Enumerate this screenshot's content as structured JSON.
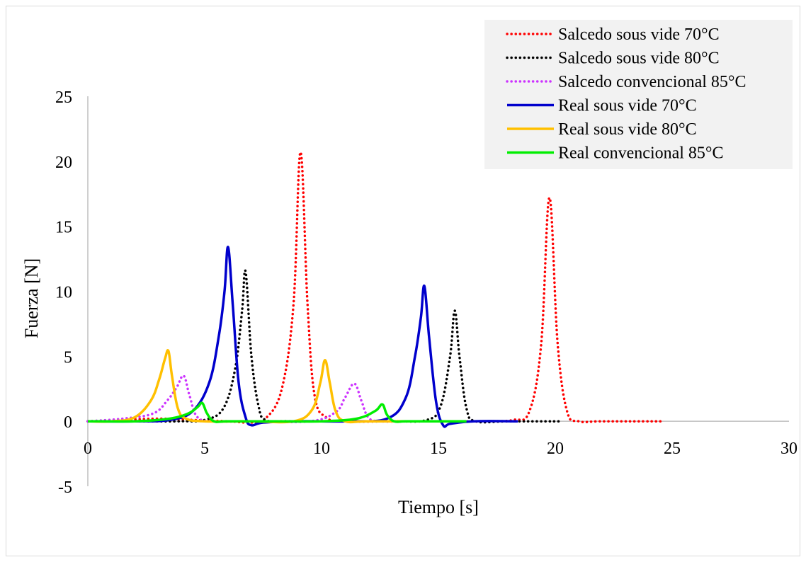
{
  "chart_data": {
    "type": "line",
    "title": "",
    "xlabel": "Tiempo [s]",
    "ylabel": "Fuerza [N]",
    "xlim": [
      0,
      30
    ],
    "ylim": [
      -5,
      25
    ],
    "x_ticks": [
      0,
      5,
      10,
      15,
      20,
      25,
      30
    ],
    "y_ticks": [
      -5,
      0,
      5,
      10,
      15,
      20,
      25
    ],
    "x_tick_labels": [
      "0",
      "5",
      "10",
      "15",
      "20",
      "25",
      "30"
    ],
    "y_tick_labels": [
      "-5",
      "0",
      "5",
      "10",
      "15",
      "20",
      "25"
    ],
    "grid": false,
    "legend_position": "top-right",
    "series": [
      {
        "name": "Salcedo sous vide 70°C",
        "color": "#ff0000",
        "style": "dotted",
        "x": [
          0,
          1.5,
          3,
          4.5,
          6,
          7,
          7.6,
          8.3,
          8.8,
          9.1,
          9.4,
          9.7,
          10.2,
          11,
          13,
          15,
          17,
          18.2,
          18.9,
          19.4,
          19.75,
          20.1,
          20.5,
          21,
          22,
          24.6
        ],
        "y": [
          0,
          0.1,
          0.2,
          0.1,
          0,
          -0.1,
          0.2,
          2.5,
          9,
          20.7,
          9,
          2,
          0.3,
          0,
          0,
          0,
          0,
          0.1,
          0.8,
          6,
          17.2,
          6,
          0.8,
          0,
          0,
          0
        ]
      },
      {
        "name": "Salcedo sous vide 80°C",
        "color": "#000000",
        "style": "dotted",
        "x": [
          0,
          2,
          4,
          5,
          5.8,
          6.3,
          6.6,
          6.75,
          7,
          7.3,
          7.6,
          8.5,
          10,
          13,
          14.5,
          15.1,
          15.5,
          15.7,
          15.9,
          16.2,
          16.6,
          18,
          20.3
        ],
        "y": [
          0,
          0,
          0,
          0.1,
          1,
          4,
          8.5,
          11.5,
          5,
          1.2,
          0.1,
          0,
          0,
          0,
          0.1,
          1.2,
          5,
          8.5,
          5,
          1,
          0,
          0,
          0
        ]
      },
      {
        "name": "Salcedo convencional 85°C",
        "color": "#cc33ff",
        "style": "dotted",
        "x": [
          0,
          1.5,
          2.8,
          3.4,
          3.8,
          4.1,
          4.35,
          4.7,
          5.5,
          7,
          9.5,
          10.6,
          11,
          11.4,
          11.7,
          12,
          12.5,
          14,
          16
        ],
        "y": [
          0,
          0.2,
          0.6,
          1.6,
          2.6,
          3.5,
          2,
          0.3,
          0,
          0,
          0,
          0.7,
          1.8,
          2.9,
          1.6,
          0.3,
          0,
          0,
          0
        ]
      },
      {
        "name": "Real sous vide 70°C",
        "color": "#0000cc",
        "style": "solid",
        "x": [
          0,
          2,
          3.5,
          4.5,
          5.2,
          5.6,
          5.85,
          6.0,
          6.2,
          6.45,
          6.75,
          7.0,
          7.5,
          9,
          11,
          12.8,
          13.6,
          14.0,
          14.25,
          14.4,
          14.6,
          14.9,
          15.2,
          15.5,
          16.5,
          18.4
        ],
        "y": [
          0,
          0,
          0.1,
          0.8,
          3,
          6.5,
          10,
          13.4,
          9,
          3,
          0.3,
          -0.3,
          -0.1,
          0,
          0,
          0.2,
          1.8,
          5,
          8,
          10.4,
          6.5,
          1.5,
          -0.3,
          -0.2,
          0,
          0
        ]
      },
      {
        "name": "Real sous vide 80°C",
        "color": "#ffc000",
        "style": "solid",
        "x": [
          0,
          1,
          2,
          2.7,
          3.05,
          3.3,
          3.45,
          3.6,
          3.85,
          4.2,
          5,
          7,
          8.8,
          9.6,
          9.95,
          10.15,
          10.35,
          10.6,
          11,
          12,
          14
        ],
        "y": [
          0,
          0,
          0.3,
          1.6,
          3.2,
          4.8,
          5.4,
          3.5,
          1,
          0.2,
          0,
          0,
          0,
          0.9,
          3,
          4.7,
          3,
          0.8,
          0,
          0,
          0
        ]
      },
      {
        "name": "Real convencional  85°C",
        "color": "#00ee00",
        "style": "solid",
        "x": [
          0,
          2,
          3.5,
          4.3,
          4.7,
          4.9,
          5.1,
          5.4,
          6,
          8,
          10,
          11.5,
          12.3,
          12.6,
          12.8,
          13.1,
          13.6,
          15,
          16.2
        ],
        "y": [
          0,
          0,
          0.2,
          0.6,
          1.1,
          1.4,
          0.6,
          0,
          0,
          0,
          0,
          0.2,
          0.8,
          1.3,
          0.5,
          0,
          0,
          0,
          0
        ]
      }
    ]
  }
}
